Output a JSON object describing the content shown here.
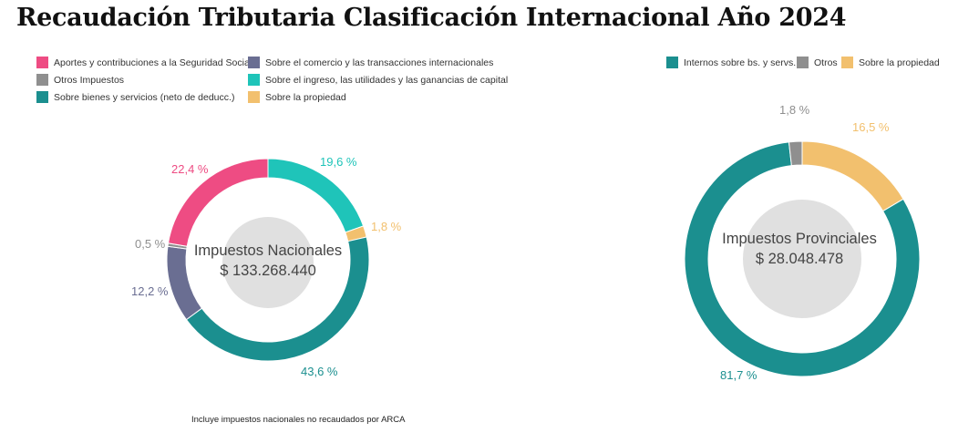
{
  "title": "Recaudación Tributaria Clasificación Internacional Año 2024",
  "note": "Incluye impuestos nacionales no recaudados por ARCA",
  "chart_data": [
    {
      "type": "pie",
      "donut": true,
      "center_title": "Impuestos Nacionales",
      "center_value": "$ 133.268.440",
      "legend_placement": "top",
      "slices": [
        {
          "name": "Sobre el ingreso, las utilidades y las ganancias de capital",
          "value": 19.6,
          "label": "19,6 %",
          "color": "#1fc4b9"
        },
        {
          "name": "Sobre la propiedad",
          "value": 1.8,
          "label": "1,8 %",
          "color": "#f2c06e"
        },
        {
          "name": "Sobre bienes y servicios (neto de deducc.)",
          "value": 43.6,
          "label": "43,6 %",
          "color": "#1b8f8f"
        },
        {
          "name": "Sobre el comercio y las transacciones internacionales",
          "value": 12.2,
          "label": "12,2 %",
          "color": "#6a6e92"
        },
        {
          "name": "Otros Impuestos",
          "value": 0.5,
          "label": "0,5 %",
          "color": "#8f8f8f"
        },
        {
          "name": "Aportes y contribuciones a la Seguridad Social",
          "value": 22.4,
          "label": "22,4 %",
          "color": "#ee4c83"
        }
      ]
    },
    {
      "type": "pie",
      "donut": true,
      "center_title": "Impuestos Provinciales",
      "center_value": "$ 28.048.478",
      "legend_placement": "top",
      "slices": [
        {
          "name": "Sobre la propiedad",
          "value": 16.5,
          "label": "16,5 %",
          "color": "#f2c06e"
        },
        {
          "name": "Internos sobre bs. y servs.",
          "value": 81.7,
          "label": "81,7 %",
          "color": "#1b8f8f"
        },
        {
          "name": "Otros",
          "value": 1.8,
          "label": "1,8 %",
          "color": "#8f8f8f"
        }
      ]
    }
  ],
  "legend1": [
    {
      "name": "Aportes y contribuciones a la Seguridad Social",
      "color": "#ee4c83"
    },
    {
      "name": "Sobre el comercio y las transacciones internacionales",
      "color": "#6a6e92"
    },
    {
      "name": "Otros Impuestos",
      "color": "#8f8f8f"
    },
    {
      "name": "Sobre el ingreso, las utilidades y las ganancias de capital",
      "color": "#1fc4b9"
    },
    {
      "name": "Sobre bienes y servicios (neto de deducc.)",
      "color": "#1b8f8f"
    },
    {
      "name": "Sobre la propiedad",
      "color": "#f2c06e"
    }
  ],
  "legend2": [
    {
      "name": "Internos sobre bs. y servs.",
      "color": "#1b8f8f"
    },
    {
      "name": "Otros",
      "color": "#8f8f8f"
    },
    {
      "name": "Sobre la propiedad",
      "color": "#f2c06e"
    }
  ]
}
